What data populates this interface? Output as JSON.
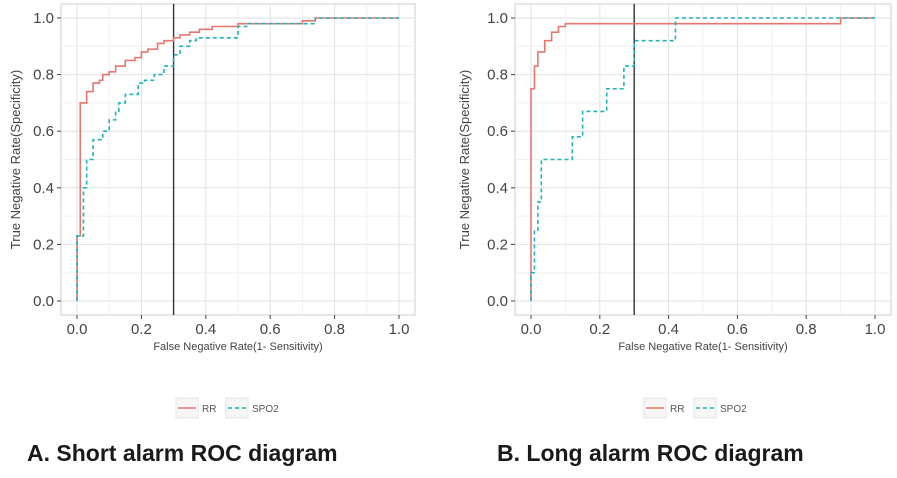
{
  "chart_data": [
    {
      "type": "line",
      "caption": "A. Short alarm ROC diagram",
      "xlabel": "False Negative Rate(1- Sensitivity)",
      "ylabel": "True Negative Rate(Specificity)",
      "xlim": [
        0,
        1
      ],
      "ylim": [
        0,
        1
      ],
      "xticks": [
        "0.0",
        "0.2",
        "0.4",
        "0.6",
        "0.8",
        "1.0"
      ],
      "yticks": [
        "0.0",
        "0.2",
        "0.4",
        "0.6",
        "0.8",
        "1.0"
      ],
      "grid": true,
      "legend_position": "bottom",
      "reference_line_x": 0.3,
      "series": [
        {
          "name": "RR",
          "color": "#e8766f",
          "dash": "solid",
          "x": [
            0,
            0,
            0.01,
            0.01,
            0.03,
            0.05,
            0.07,
            0.08,
            0.1,
            0.12,
            0.15,
            0.18,
            0.2,
            0.22,
            0.25,
            0.27,
            0.3,
            0.32,
            0.35,
            0.38,
            0.42,
            0.5,
            0.6,
            0.7,
            0.74,
            1.0
          ],
          "y": [
            0,
            0.23,
            0.67,
            0.7,
            0.74,
            0.77,
            0.78,
            0.8,
            0.81,
            0.83,
            0.85,
            0.86,
            0.88,
            0.89,
            0.91,
            0.92,
            0.93,
            0.94,
            0.95,
            0.96,
            0.97,
            0.98,
            0.98,
            0.99,
            1.0,
            1.0
          ]
        },
        {
          "name": "SPO2",
          "color": "#1fb2b8",
          "dash": "dashed",
          "x": [
            0,
            0,
            0.02,
            0.03,
            0.05,
            0.08,
            0.1,
            0.12,
            0.13,
            0.15,
            0.17,
            0.19,
            0.21,
            0.24,
            0.27,
            0.3,
            0.32,
            0.35,
            0.37,
            0.42,
            0.5,
            0.53,
            0.6,
            0.74,
            1.0
          ],
          "y": [
            0,
            0.23,
            0.4,
            0.5,
            0.57,
            0.6,
            0.64,
            0.67,
            0.7,
            0.73,
            0.73,
            0.77,
            0.78,
            0.8,
            0.83,
            0.87,
            0.9,
            0.92,
            0.93,
            0.93,
            0.97,
            0.98,
            0.98,
            1.0,
            1.0
          ]
        }
      ]
    },
    {
      "type": "line",
      "caption": "B. Long alarm ROC diagram",
      "xlabel": "False Negative Rate(1- Sensitivity)",
      "ylabel": "True Negative Rate(Specificity)",
      "xlim": [
        0,
        1
      ],
      "ylim": [
        0,
        1
      ],
      "xticks": [
        "0.0",
        "0.2",
        "0.4",
        "0.6",
        "0.8",
        "1.0"
      ],
      "yticks": [
        "0.0",
        "0.2",
        "0.4",
        "0.6",
        "0.8",
        "1.0"
      ],
      "grid": true,
      "legend_position": "bottom",
      "reference_line_x": 0.3,
      "series": [
        {
          "name": "RR",
          "color": "#e8766f",
          "dash": "solid",
          "x": [
            0,
            0,
            0.01,
            0.02,
            0.04,
            0.06,
            0.08,
            0.1,
            0.15,
            0.3,
            0.5,
            0.85,
            0.9,
            1.0
          ],
          "y": [
            0,
            0.75,
            0.83,
            0.88,
            0.92,
            0.95,
            0.97,
            0.98,
            0.98,
            0.98,
            0.98,
            0.98,
            1.0,
            1.0
          ]
        },
        {
          "name": "SPO2",
          "color": "#1fb2b8",
          "dash": "dashed",
          "x": [
            0,
            0,
            0.01,
            0.02,
            0.03,
            0.1,
            0.12,
            0.15,
            0.2,
            0.22,
            0.25,
            0.27,
            0.29,
            0.3,
            0.4,
            0.42,
            0.5,
            1.0
          ],
          "y": [
            0,
            0.1,
            0.25,
            0.35,
            0.5,
            0.5,
            0.58,
            0.67,
            0.67,
            0.75,
            0.75,
            0.83,
            0.83,
            0.92,
            0.92,
            1.0,
            1.0,
            1.0
          ]
        }
      ]
    }
  ]
}
